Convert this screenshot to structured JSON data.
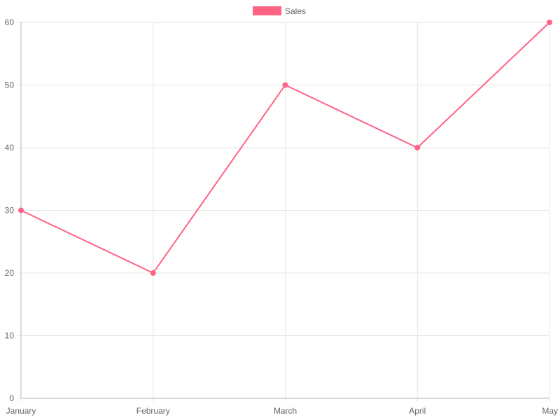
{
  "chart_data": {
    "type": "line",
    "categories": [
      "January",
      "February",
      "March",
      "April",
      "May"
    ],
    "series": [
      {
        "name": "Sales",
        "values": [
          30,
          20,
          50,
          40,
          60
        ],
        "color": "#ff6384"
      }
    ],
    "title": "",
    "xlabel": "",
    "ylabel": "",
    "ylim": [
      0,
      60
    ],
    "yticks": [
      "0",
      "10",
      "20",
      "30",
      "40",
      "50",
      "60"
    ],
    "grid": true,
    "legend_position": "top-center",
    "colors": {
      "grid": "#e5e5e5",
      "axis": "#b3b3b3",
      "text": "#666666"
    }
  }
}
